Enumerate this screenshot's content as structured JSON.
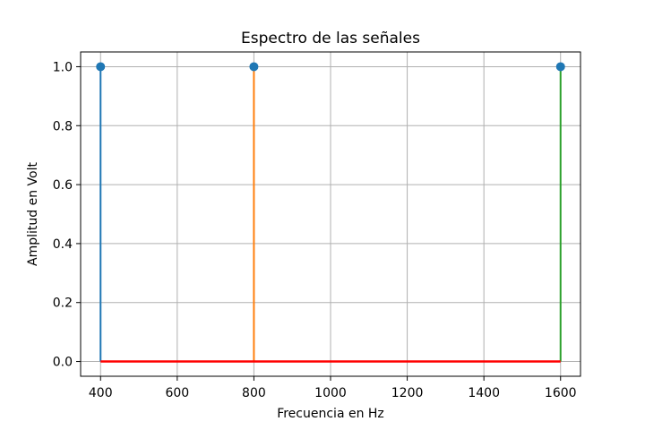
{
  "chart_data": {
    "type": "stem",
    "title": "Espectro de las señales",
    "xlabel": "Frecuencia en Hz",
    "ylabel": "Amplitud en Volt",
    "xlim": [
      348,
      1652
    ],
    "ylim": [
      -0.05,
      1.05
    ],
    "x_ticks": [
      400,
      600,
      800,
      1000,
      1200,
      1400,
      1600
    ],
    "y_ticks": [
      0.0,
      0.2,
      0.4,
      0.6,
      0.8,
      1.0
    ],
    "x_tick_labels": [
      "400",
      "600",
      "800",
      "1000",
      "1200",
      "1400",
      "1600"
    ],
    "y_tick_labels": [
      "0.0",
      "0.2",
      "0.4",
      "0.6",
      "0.8",
      "1.0"
    ],
    "grid": true,
    "series": [
      {
        "x": [
          400
        ],
        "y": [
          1.0
        ],
        "color": "#1f77b4"
      },
      {
        "x": [
          800
        ],
        "y": [
          1.0
        ],
        "color": "#ff7f0e"
      },
      {
        "x": [
          1600
        ],
        "y": [
          1.0
        ],
        "color": "#2ca02c"
      }
    ],
    "marker_color": "#1f77b4",
    "baseline": {
      "x": [
        400,
        1600
      ],
      "y": 0.0,
      "color": "#ff0000"
    }
  }
}
